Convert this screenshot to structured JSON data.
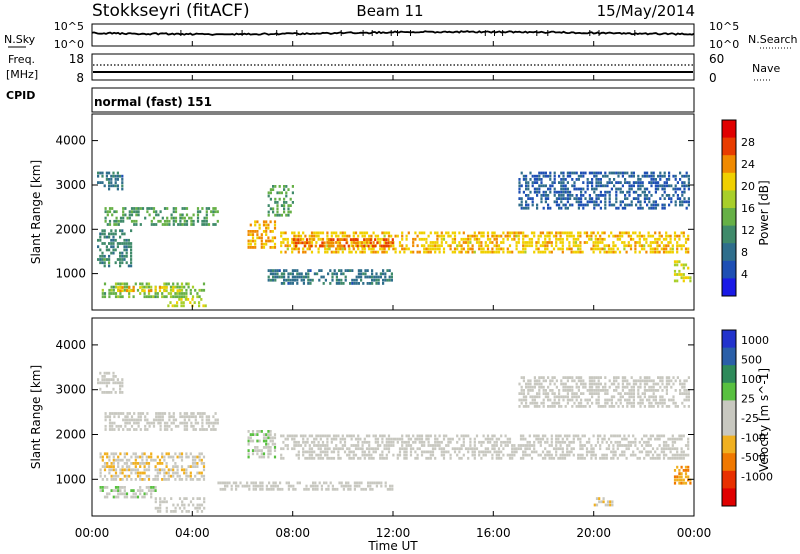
{
  "header": {
    "station": "Stokkseyri (fitACF)",
    "beam": "Beam 11",
    "date": "15/May/2014"
  },
  "strip_noise": {
    "left_label": "N.Sky",
    "right_label": "N.Search",
    "left_ticks": [
      "10^5",
      "10^0"
    ],
    "right_ticks": [
      "10^5",
      "10^0"
    ]
  },
  "strip_freq": {
    "left_label_top": "Freq.",
    "left_label_bottom": "[MHz]",
    "right_label": "Nave",
    "left_ticks": [
      "18",
      "8"
    ],
    "right_ticks": [
      "60",
      "0"
    ]
  },
  "cpid": {
    "label": "CPID",
    "value": "normal (fast) 151"
  },
  "axes": {
    "ylabel": "Slant Range [km]",
    "xlabel": "Time UT",
    "yticks": [
      "4000",
      "3000",
      "2000",
      "1000"
    ],
    "xticks": [
      "00:00",
      "04:00",
      "08:00",
      "12:00",
      "16:00",
      "20:00",
      "00:00"
    ]
  },
  "colors": {
    "power_scale": [
      "#1a1ae6",
      "#1e4fb4",
      "#2f6e8c",
      "#3f8a6a",
      "#66b046",
      "#a8cf2a",
      "#f0d000",
      "#f08a00",
      "#e83c00",
      "#e00000"
    ],
    "velocity_scale": [
      "#2233cc",
      "#2a5fa8",
      "#2e8a5a",
      "#58c040",
      "#c8c8c0",
      "#c8c8c0",
      "#f0b020",
      "#f07800",
      "#e83000",
      "#e00000"
    ]
  },
  "chart_data": [
    {
      "type": "heatmap",
      "quantity": "Power",
      "colorbar_label": "Power [dB]",
      "colorbar_ticks": [
        "28",
        "24",
        "20",
        "16",
        "12",
        "8",
        "4"
      ],
      "vmin": 0,
      "vmax": 30,
      "xlim": [
        0,
        24
      ],
      "ylim": [
        180,
        4600
      ],
      "regions": [
        {
          "t0": 0.2,
          "t1": 1.2,
          "r0": 2900,
          "r1": 3300,
          "value": 8
        },
        {
          "t0": 0.5,
          "t1": 5.0,
          "r0": 2100,
          "r1": 2500,
          "value": 12
        },
        {
          "t0": 0.2,
          "t1": 1.6,
          "r0": 1200,
          "r1": 2000,
          "value": 10
        },
        {
          "t0": 0.3,
          "t1": 4.5,
          "r0": 500,
          "r1": 800,
          "value": 14
        },
        {
          "t0": 1.0,
          "t1": 3.5,
          "r0": 620,
          "r1": 720,
          "value": 20
        },
        {
          "t0": 3.0,
          "t1": 4.5,
          "r0": 300,
          "r1": 450,
          "value": 18
        },
        {
          "t0": 6.2,
          "t1": 7.3,
          "r0": 1600,
          "r1": 2200,
          "value": 22
        },
        {
          "t0": 7.0,
          "t1": 8.0,
          "r0": 2300,
          "r1": 3000,
          "value": 12
        },
        {
          "t0": 7.5,
          "t1": 23.8,
          "r0": 1500,
          "r1": 1950,
          "value": 20
        },
        {
          "t0": 8.0,
          "t1": 12.0,
          "r0": 1650,
          "r1": 1800,
          "value": 24
        },
        {
          "t0": 7.0,
          "t1": 12.0,
          "r0": 800,
          "r1": 1100,
          "value": 8
        },
        {
          "t0": 17.0,
          "t1": 23.8,
          "r0": 2500,
          "r1": 3300,
          "value": 6
        },
        {
          "t0": 23.2,
          "t1": 23.9,
          "r0": 800,
          "r1": 1300,
          "value": 18
        }
      ]
    },
    {
      "type": "heatmap",
      "quantity": "Velocity",
      "colorbar_label": "Velocity [m s^-1]",
      "colorbar_ticks": [
        "1000",
        "500",
        "100",
        "25",
        "-25",
        "-100",
        "-500",
        "-1000"
      ],
      "vmin": -1000,
      "vmax": 1000,
      "xlim": [
        0,
        24
      ],
      "ylim": [
        180,
        4600
      ],
      "regions": [
        {
          "t0": 0.5,
          "t1": 5.0,
          "r0": 2100,
          "r1": 2500,
          "value": 0
        },
        {
          "t0": 0.2,
          "t1": 1.2,
          "r0": 2900,
          "r1": 3400,
          "value": 0
        },
        {
          "t0": 0.3,
          "t1": 4.5,
          "r0": 1000,
          "r1": 1600,
          "value": -150
        },
        {
          "t0": 0.3,
          "t1": 2.5,
          "r0": 600,
          "r1": 850,
          "value": 120
        },
        {
          "t0": 2.5,
          "t1": 4.5,
          "r0": 300,
          "r1": 600,
          "value": 0
        },
        {
          "t0": 6.2,
          "t1": 7.3,
          "r0": 1500,
          "r1": 2100,
          "value": 120
        },
        {
          "t0": 7.5,
          "t1": 23.8,
          "r0": 1450,
          "r1": 2000,
          "value": 0
        },
        {
          "t0": 5.0,
          "t1": 12.0,
          "r0": 750,
          "r1": 950,
          "value": 0
        },
        {
          "t0": 17.0,
          "t1": 23.8,
          "r0": 2600,
          "r1": 3300,
          "value": 0
        },
        {
          "t0": 23.2,
          "t1": 23.9,
          "r0": 900,
          "r1": 1300,
          "value": -400
        },
        {
          "t0": 20.0,
          "t1": 20.8,
          "r0": 450,
          "r1": 600,
          "value": -200
        }
      ]
    }
  ]
}
